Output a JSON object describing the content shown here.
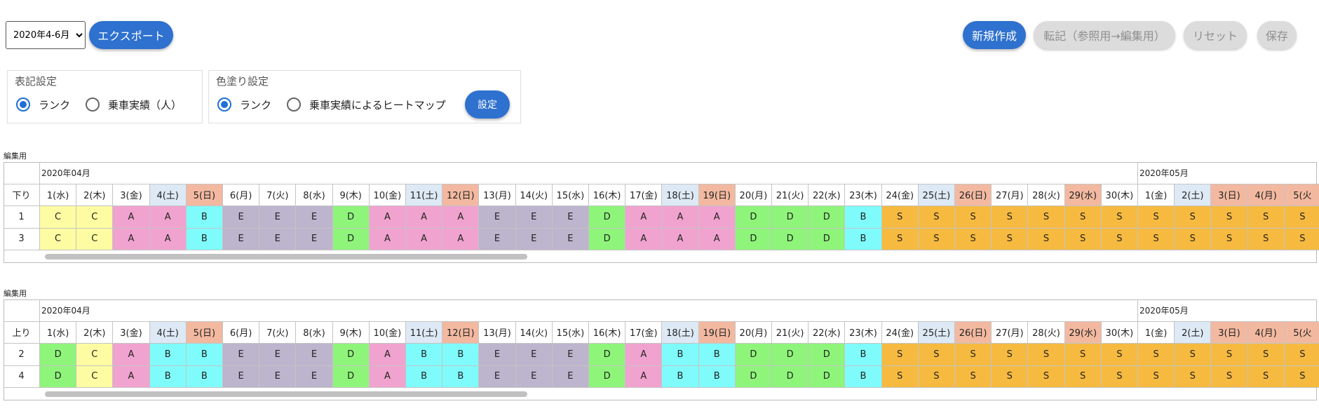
{
  "toolbar": {
    "period_select": {
      "value": "2020年4-6月",
      "options": [
        "2020年4-6月"
      ]
    },
    "export_label": "エクスポート",
    "new_label": "新規作成",
    "transfer_label": "転記（参照用→編集用）",
    "reset_label": "リセット",
    "save_label": "保存"
  },
  "display_settings": {
    "title": "表記設定",
    "options": [
      {
        "label": "ランク",
        "checked": true
      },
      {
        "label": "乗車実績（人）",
        "checked": false
      }
    ]
  },
  "color_settings": {
    "title": "色塗り設定",
    "options": [
      {
        "label": "ランク",
        "checked": true
      },
      {
        "label": "乗車実績によるヒートマップ",
        "checked": false
      }
    ],
    "apply_label": "設定"
  },
  "colors": {
    "accent": "#2e71cf",
    "rank": {
      "A": "#f0a3cf",
      "B": "#7ffbfb",
      "C": "#fdfca2",
      "D": "#8ef57a",
      "E": "#bdb4cd",
      "S": "#f6ba40"
    },
    "saturday": "#dde9f5",
    "sunday": "#f3b9a0"
  },
  "days": [
    {
      "label": "1(水)",
      "type": "weekday"
    },
    {
      "label": "2(木)",
      "type": "weekday"
    },
    {
      "label": "3(金)",
      "type": "weekday"
    },
    {
      "label": "4(土)",
      "type": "sat"
    },
    {
      "label": "5(日)",
      "type": "sun"
    },
    {
      "label": "6(月)",
      "type": "weekday"
    },
    {
      "label": "7(火)",
      "type": "weekday"
    },
    {
      "label": "8(水)",
      "type": "weekday"
    },
    {
      "label": "9(木)",
      "type": "weekday"
    },
    {
      "label": "10(金)",
      "type": "weekday"
    },
    {
      "label": "11(土)",
      "type": "sat"
    },
    {
      "label": "12(日)",
      "type": "sun"
    },
    {
      "label": "13(月)",
      "type": "weekday"
    },
    {
      "label": "14(火)",
      "type": "weekday"
    },
    {
      "label": "15(水)",
      "type": "weekday"
    },
    {
      "label": "16(木)",
      "type": "weekday"
    },
    {
      "label": "17(金)",
      "type": "weekday"
    },
    {
      "label": "18(土)",
      "type": "sat"
    },
    {
      "label": "19(日)",
      "type": "sun"
    },
    {
      "label": "20(月)",
      "type": "weekday"
    },
    {
      "label": "21(火)",
      "type": "weekday"
    },
    {
      "label": "22(水)",
      "type": "weekday"
    },
    {
      "label": "23(木)",
      "type": "weekday"
    },
    {
      "label": "24(金)",
      "type": "weekday"
    },
    {
      "label": "25(土)",
      "type": "sat"
    },
    {
      "label": "26(日)",
      "type": "sun"
    },
    {
      "label": "27(月)",
      "type": "weekday"
    },
    {
      "label": "28(火)",
      "type": "weekday"
    },
    {
      "label": "29(水)",
      "type": "sun"
    },
    {
      "label": "30(木)",
      "type": "weekday"
    },
    {
      "label": "1(金)",
      "type": "weekday"
    },
    {
      "label": "2(土)",
      "type": "sat"
    },
    {
      "label": "3(日)",
      "type": "sun"
    },
    {
      "label": "4(月)",
      "type": "sun"
    },
    {
      "label": "5(火",
      "type": "sun"
    }
  ],
  "tables": [
    {
      "caption": "編集用",
      "months": [
        "2020年04月",
        "2020年05月"
      ],
      "direction": "下り",
      "rows": [
        {
          "id": "1",
          "cells": [
            "C",
            "C",
            "A",
            "A",
            "B",
            "E",
            "E",
            "E",
            "D",
            "A",
            "A",
            "A",
            "E",
            "E",
            "E",
            "D",
            "A",
            "A",
            "A",
            "D",
            "D",
            "D",
            "B",
            "S",
            "S",
            "S",
            "S",
            "S",
            "S",
            "S",
            "S",
            "S",
            "S",
            "S",
            "S"
          ]
        },
        {
          "id": "3",
          "cells": [
            "C",
            "C",
            "A",
            "A",
            "B",
            "E",
            "E",
            "E",
            "D",
            "A",
            "A",
            "A",
            "E",
            "E",
            "E",
            "D",
            "A",
            "A",
            "A",
            "D",
            "D",
            "D",
            "B",
            "S",
            "S",
            "S",
            "S",
            "S",
            "S",
            "S",
            "S",
            "S",
            "S",
            "S",
            "S"
          ]
        }
      ]
    },
    {
      "caption": "編集用",
      "months": [
        "2020年04月",
        "2020年05月"
      ],
      "direction": "上り",
      "rows": [
        {
          "id": "2",
          "cells": [
            "D",
            "C",
            "A",
            "B",
            "B",
            "E",
            "E",
            "E",
            "D",
            "A",
            "B",
            "B",
            "E",
            "E",
            "E",
            "D",
            "A",
            "B",
            "B",
            "D",
            "D",
            "D",
            "B",
            "S",
            "S",
            "S",
            "S",
            "S",
            "S",
            "S",
            "S",
            "S",
            "S",
            "S",
            "S"
          ]
        },
        {
          "id": "4",
          "cells": [
            "D",
            "C",
            "A",
            "B",
            "B",
            "E",
            "E",
            "E",
            "D",
            "A",
            "B",
            "B",
            "E",
            "E",
            "E",
            "D",
            "A",
            "B",
            "B",
            "D",
            "D",
            "D",
            "B",
            "S",
            "S",
            "S",
            "S",
            "S",
            "S",
            "S",
            "S",
            "S",
            "S",
            "S",
            "S"
          ]
        }
      ]
    }
  ]
}
